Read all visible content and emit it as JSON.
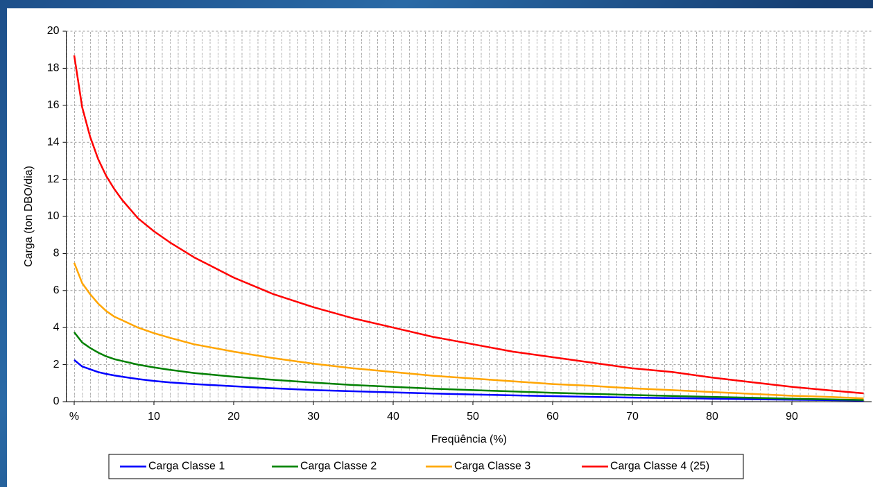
{
  "chart_data": {
    "type": "line",
    "x_label": "Freqüência (%)",
    "y_label": "Carga (ton DBO/dia)",
    "x": [
      0,
      1,
      2,
      3,
      4,
      5,
      6,
      8,
      10,
      12,
      15,
      20,
      25,
      30,
      35,
      40,
      45,
      50,
      55,
      60,
      65,
      70,
      75,
      80,
      85,
      90,
      95,
      99
    ],
    "series": [
      {
        "name": "Carga Classe 1",
        "color": "#0000ff",
        "values": [
          2.25,
          1.9,
          1.75,
          1.6,
          1.5,
          1.42,
          1.35,
          1.22,
          1.12,
          1.04,
          0.95,
          0.83,
          0.72,
          0.63,
          0.56,
          0.5,
          0.44,
          0.39,
          0.34,
          0.3,
          0.26,
          0.22,
          0.19,
          0.16,
          0.13,
          0.1,
          0.08,
          0.06
        ]
      },
      {
        "name": "Carga Classe 2",
        "color": "#008000",
        "values": [
          3.75,
          3.2,
          2.9,
          2.65,
          2.45,
          2.3,
          2.2,
          2.0,
          1.85,
          1.72,
          1.55,
          1.35,
          1.18,
          1.03,
          0.9,
          0.8,
          0.7,
          0.62,
          0.55,
          0.48,
          0.42,
          0.36,
          0.31,
          0.26,
          0.21,
          0.16,
          0.12,
          0.09
        ]
      },
      {
        "name": "Carga Classe 3",
        "color": "#ffa500",
        "values": [
          7.5,
          6.4,
          5.8,
          5.3,
          4.9,
          4.6,
          4.4,
          4.0,
          3.7,
          3.45,
          3.1,
          2.7,
          2.35,
          2.05,
          1.8,
          1.6,
          1.4,
          1.25,
          1.1,
          0.95,
          0.85,
          0.72,
          0.62,
          0.52,
          0.42,
          0.32,
          0.25,
          0.18
        ]
      },
      {
        "name": "Carga Classe 4 (25)",
        "color": "#ff0000",
        "values": [
          18.7,
          15.9,
          14.3,
          13.1,
          12.2,
          11.5,
          10.9,
          9.9,
          9.2,
          8.6,
          7.8,
          6.7,
          5.8,
          5.1,
          4.5,
          4.0,
          3.5,
          3.1,
          2.7,
          2.4,
          2.1,
          1.8,
          1.6,
          1.3,
          1.05,
          0.8,
          0.6,
          0.45
        ]
      }
    ],
    "xlim": [
      -1,
      100
    ],
    "ylim": [
      0,
      20
    ],
    "xticks": [
      {
        "value": 0,
        "label": "%"
      },
      10,
      20,
      30,
      40,
      50,
      60,
      70,
      80,
      90
    ],
    "yticks": [
      0,
      2,
      4,
      6,
      8,
      10,
      12,
      14,
      16,
      18,
      20
    ],
    "grid": true,
    "legend": "bottom"
  }
}
